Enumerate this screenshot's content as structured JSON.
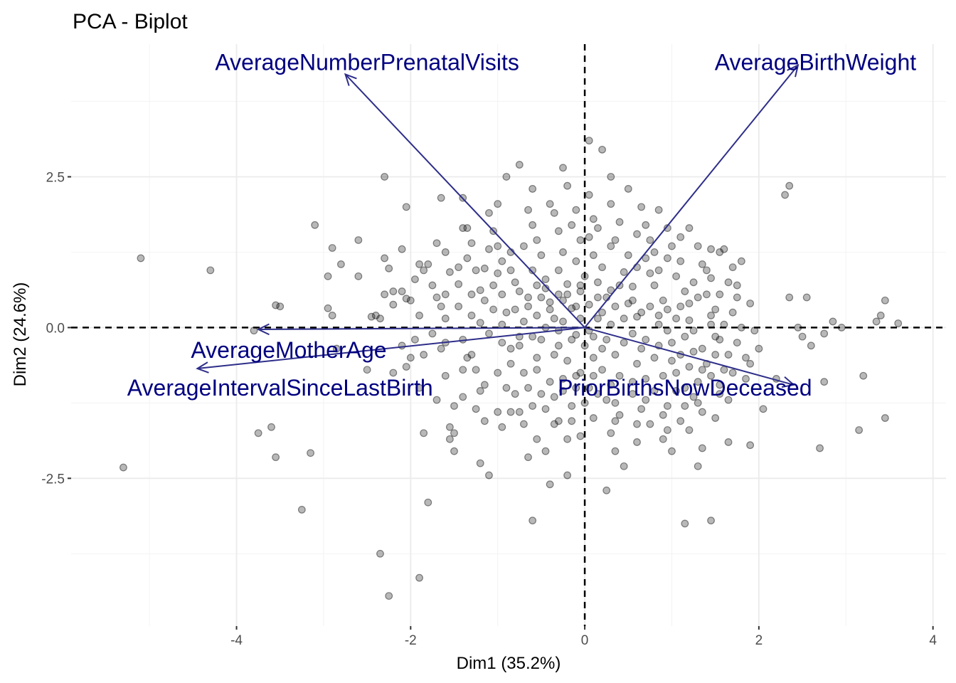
{
  "chart_data": {
    "type": "scatter",
    "title": "PCA - Biplot",
    "xlabel": "Dim1 (35.2%)",
    "ylabel": "Dim2 (24.6%)",
    "xlim": [
      -5.9,
      4.15
    ],
    "ylim": [
      -4.95,
      4.7
    ],
    "x_ticks": [
      -4,
      -2,
      0,
      2,
      4
    ],
    "y_ticks": [
      -2.5,
      0,
      2.5
    ],
    "x_tick_labels": [
      "-4",
      "-2",
      "0",
      "2",
      "4"
    ],
    "y_tick_labels": [
      "-2.5",
      "0.0",
      "2.5"
    ],
    "grid": true,
    "reference_lines": {
      "x": 0,
      "y": 0,
      "style": "dashed"
    },
    "point_color": "#000000",
    "arrow_color": "#2e2e8a",
    "label_color": "#000080",
    "variables": [
      {
        "name": "AverageNumberPrenatalVisits",
        "x": -2.75,
        "y": 4.2,
        "label_x": -2.5,
        "label_y": 4.4
      },
      {
        "name": "AverageBirthWeight",
        "x": 2.45,
        "y": 4.35,
        "label_x": 2.65,
        "label_y": 4.4
      },
      {
        "name": "AverageMotherAge",
        "x": -3.75,
        "y": -0.03,
        "label_x": -3.4,
        "label_y": -0.37
      },
      {
        "name": "AverageIntervalSinceLastBirth",
        "x": -4.45,
        "y": -0.68,
        "label_x": -3.5,
        "label_y": -1.0
      },
      {
        "name": "PriorBirthsNowDeceased",
        "x": 2.4,
        "y": -0.95,
        "label_x": 1.15,
        "label_y": -1.0
      }
    ],
    "points": [
      [
        -5.3,
        -2.32
      ],
      [
        -5.1,
        1.15
      ],
      [
        -4.3,
        0.95
      ],
      [
        -3.55,
        0.37
      ],
      [
        -3.5,
        0.35
      ],
      [
        -3.8,
        -0.05
      ],
      [
        -3.75,
        -1.75
      ],
      [
        -3.6,
        -1.65
      ],
      [
        -3.55,
        -2.15
      ],
      [
        -3.25,
        -3.02
      ],
      [
        -3.15,
        -2.08
      ],
      [
        -3.1,
        1.7
      ],
      [
        -2.9,
        1.32
      ],
      [
        -2.95,
        0.85
      ],
      [
        -2.8,
        1.05
      ],
      [
        -2.9,
        0.2
      ],
      [
        -2.95,
        0.32
      ],
      [
        -2.6,
        0.85
      ],
      [
        -2.5,
        -0.7
      ],
      [
        -2.4,
        0.2
      ],
      [
        -2.35,
        0.15
      ],
      [
        -2.3,
        2.5
      ],
      [
        -2.3,
        1.15
      ],
      [
        -2.25,
        0.98
      ],
      [
        -2.2,
        0.6
      ],
      [
        -2.2,
        0.38
      ],
      [
        -2.1,
        0.6
      ],
      [
        -2.05,
        0.48
      ],
      [
        -2.1,
        -0.3
      ],
      [
        -2.2,
        -0.75
      ],
      [
        -2.0,
        -0.5
      ],
      [
        -1.9,
        1.05
      ],
      [
        -1.8,
        1.05
      ],
      [
        -1.85,
        0.95
      ],
      [
        -1.9,
        -1.0
      ],
      [
        -1.85,
        -1.75
      ],
      [
        -1.8,
        -2.9
      ],
      [
        -1.9,
        -4.15
      ],
      [
        -2.35,
        -3.75
      ],
      [
        -2.25,
        -4.45
      ],
      [
        -1.7,
        1.4
      ],
      [
        -1.7,
        0.5
      ],
      [
        -1.6,
        1.25
      ],
      [
        -1.55,
        0.92
      ],
      [
        -1.6,
        0.15
      ],
      [
        -1.65,
        -0.35
      ],
      [
        -1.6,
        -0.8
      ],
      [
        -1.55,
        -1.65
      ],
      [
        -1.5,
        -1.75
      ],
      [
        -1.55,
        -1.85
      ],
      [
        -1.45,
        0.35
      ],
      [
        -1.4,
        -0.2
      ],
      [
        -1.35,
        -0.5
      ],
      [
        -1.4,
        -1.15
      ],
      [
        -1.5,
        -2.05
      ],
      [
        -1.4,
        2.15
      ],
      [
        -1.4,
        1.65
      ],
      [
        -1.35,
        1.65
      ],
      [
        -1.3,
        1.4
      ],
      [
        -1.25,
        0.95
      ],
      [
        -1.2,
        0.62
      ],
      [
        -1.15,
        0.98
      ],
      [
        -1.3,
        0.2
      ],
      [
        -1.2,
        0.08
      ],
      [
        -1.1,
        -0.1
      ],
      [
        -1.25,
        -0.7
      ],
      [
        -1.2,
        -1.05
      ],
      [
        -1.15,
        -1.55
      ],
      [
        -1.2,
        -2.25
      ],
      [
        -1.1,
        -2.45
      ],
      [
        -1.1,
        1.9
      ],
      [
        -1.05,
        1.6
      ],
      [
        -1.0,
        1.35
      ],
      [
        -1.0,
        0.9
      ],
      [
        -0.95,
        0.55
      ],
      [
        -0.9,
        0.25
      ],
      [
        -0.95,
        -0.25
      ],
      [
        -0.85,
        -0.6
      ],
      [
        -0.9,
        -1.0
      ],
      [
        -1.0,
        -1.4
      ],
      [
        -0.9,
        2.5
      ],
      [
        -0.85,
        1.25
      ],
      [
        -0.8,
        0.75
      ],
      [
        -0.75,
        0.6
      ],
      [
        -0.7,
        0.1
      ],
      [
        -0.75,
        -0.3
      ],
      [
        -0.7,
        -0.75
      ],
      [
        -0.8,
        -1.1
      ],
      [
        -0.75,
        -1.4
      ],
      [
        -0.7,
        -1.6
      ],
      [
        -0.65,
        -2.15
      ],
      [
        -0.75,
        2.7
      ],
      [
        -0.65,
        1.95
      ],
      [
        -0.6,
        1.7
      ],
      [
        -0.55,
        1.45
      ],
      [
        -0.5,
        1.2
      ],
      [
        -0.6,
        0.95
      ],
      [
        -0.45,
        0.8
      ],
      [
        -0.5,
        0.5
      ],
      [
        -0.4,
        0.42
      ],
      [
        -0.55,
        0.2
      ],
      [
        -0.45,
        0.0
      ],
      [
        -0.5,
        -0.2
      ],
      [
        -0.35,
        -0.45
      ],
      [
        -0.55,
        -0.7
      ],
      [
        -0.4,
        -0.9
      ],
      [
        -0.5,
        -1.1
      ],
      [
        -0.45,
        -1.35
      ],
      [
        -0.35,
        -1.6
      ],
      [
        -0.55,
        -1.85
      ],
      [
        -0.45,
        -2.05
      ],
      [
        -0.4,
        2.05
      ],
      [
        -0.3,
        1.6
      ],
      [
        -0.25,
        1.25
      ],
      [
        -0.3,
        0.95
      ],
      [
        -0.2,
        0.72
      ],
      [
        -0.3,
        0.55
      ],
      [
        -0.15,
        0.32
      ],
      [
        -0.25,
        0.1
      ],
      [
        -0.1,
        -0.12
      ],
      [
        -0.3,
        -0.3
      ],
      [
        -0.2,
        -0.55
      ],
      [
        -0.1,
        -0.8
      ],
      [
        -0.25,
        -1.05
      ],
      [
        -0.15,
        -1.3
      ],
      [
        -0.3,
        -1.55
      ],
      [
        -0.2,
        -1.85
      ],
      [
        -0.6,
        -3.2
      ],
      [
        -0.4,
        -2.6
      ],
      [
        -0.25,
        2.65
      ],
      [
        -0.2,
        2.35
      ],
      [
        -0.1,
        1.95
      ],
      [
        -0.15,
        1.7
      ],
      [
        -0.05,
        1.45
      ],
      [
        -0.1,
        1.1
      ],
      [
        0.0,
        0.85
      ],
      [
        -0.05,
        0.6
      ],
      [
        0.05,
        0.38
      ],
      [
        -0.05,
        0.15
      ],
      [
        0.05,
        -0.05
      ],
      [
        0.0,
        -0.3
      ],
      [
        0.1,
        -0.5
      ],
      [
        -0.05,
        -0.75
      ],
      [
        0.05,
        -1.0
      ],
      [
        0.0,
        -1.25
      ],
      [
        0.1,
        -1.5
      ],
      [
        -0.05,
        -1.8
      ],
      [
        0.05,
        2.2
      ],
      [
        0.1,
        1.8
      ],
      [
        0.05,
        1.5
      ],
      [
        0.1,
        1.2
      ],
      [
        0.2,
        1.0
      ],
      [
        0.15,
        0.75
      ],
      [
        0.25,
        0.5
      ],
      [
        0.2,
        0.25
      ],
      [
        0.3,
        0.05
      ],
      [
        0.25,
        -0.2
      ],
      [
        0.35,
        -0.45
      ],
      [
        0.2,
        -0.7
      ],
      [
        0.3,
        -0.95
      ],
      [
        0.25,
        -1.2
      ],
      [
        0.4,
        -1.45
      ],
      [
        0.3,
        -1.75
      ],
      [
        0.35,
        -2.05
      ],
      [
        0.45,
        -2.3
      ],
      [
        0.05,
        3.1
      ],
      [
        0.2,
        2.95
      ],
      [
        0.3,
        2.5
      ],
      [
        0.3,
        2.05
      ],
      [
        0.4,
        1.75
      ],
      [
        0.35,
        1.45
      ],
      [
        0.5,
        1.2
      ],
      [
        0.45,
        0.92
      ],
      [
        0.55,
        0.68
      ],
      [
        0.5,
        0.4
      ],
      [
        0.6,
        0.18
      ],
      [
        0.55,
        -0.1
      ],
      [
        0.65,
        -0.35
      ],
      [
        0.6,
        -0.6
      ],
      [
        0.7,
        -0.85
      ],
      [
        0.55,
        -1.1
      ],
      [
        0.65,
        -1.35
      ],
      [
        0.75,
        -1.6
      ],
      [
        0.6,
        -1.9
      ],
      [
        0.5,
        2.3
      ],
      [
        0.65,
        2.0
      ],
      [
        0.7,
        1.7
      ],
      [
        0.75,
        1.45
      ],
      [
        0.7,
        1.15
      ],
      [
        0.85,
        0.95
      ],
      [
        0.8,
        0.7
      ],
      [
        0.9,
        0.45
      ],
      [
        0.85,
        0.2
      ],
      [
        0.95,
        -0.05
      ],
      [
        0.85,
        -0.3
      ],
      [
        1.0,
        -0.55
      ],
      [
        0.9,
        -0.8
      ],
      [
        1.05,
        -1.05
      ],
      [
        0.95,
        -1.3
      ],
      [
        1.1,
        -1.55
      ],
      [
        0.9,
        -1.85
      ],
      [
        1.0,
        -2.05
      ],
      [
        0.85,
        1.95
      ],
      [
        0.95,
        1.65
      ],
      [
        1.0,
        1.35
      ],
      [
        1.1,
        1.1
      ],
      [
        1.05,
        0.85
      ],
      [
        1.15,
        0.6
      ],
      [
        1.1,
        0.35
      ],
      [
        1.2,
        0.12
      ],
      [
        1.15,
        -0.15
      ],
      [
        1.25,
        -0.4
      ],
      [
        1.2,
        -0.65
      ],
      [
        1.3,
        -0.9
      ],
      [
        1.25,
        -1.15
      ],
      [
        1.35,
        -1.4
      ],
      [
        1.2,
        -1.7
      ],
      [
        1.35,
        -2.0
      ],
      [
        1.3,
        -2.3
      ],
      [
        1.2,
        1.65
      ],
      [
        1.3,
        1.35
      ],
      [
        1.35,
        1.05
      ],
      [
        1.45,
        0.82
      ],
      [
        1.4,
        0.55
      ],
      [
        1.5,
        0.3
      ],
      [
        1.45,
        0.05
      ],
      [
        1.55,
        -0.2
      ],
      [
        1.5,
        -0.45
      ],
      [
        1.6,
        -0.7
      ],
      [
        1.55,
        -0.95
      ],
      [
        1.65,
        -1.2
      ],
      [
        1.5,
        -1.5
      ],
      [
        1.6,
        1.3
      ],
      [
        1.7,
        1.0
      ],
      [
        1.65,
        0.75
      ],
      [
        1.75,
        0.5
      ],
      [
        1.7,
        0.25
      ],
      [
        1.8,
        0.0
      ],
      [
        1.75,
        -0.25
      ],
      [
        1.85,
        -0.5
      ],
      [
        1.7,
        -0.75
      ],
      [
        1.8,
        1.1
      ],
      [
        1.55,
        1.25
      ],
      [
        1.45,
        1.3
      ],
      [
        1.9,
        0.4
      ],
      [
        1.95,
        -0.05
      ],
      [
        2.0,
        -0.35
      ],
      [
        1.9,
        -0.6
      ],
      [
        1.85,
        -0.85
      ],
      [
        1.65,
        -1.9
      ],
      [
        1.9,
        -1.95
      ],
      [
        2.05,
        -1.35
      ],
      [
        2.2,
        -0.85
      ],
      [
        2.3,
        2.2
      ],
      [
        2.35,
        2.35
      ],
      [
        2.35,
        0.5
      ],
      [
        2.55,
        0.5
      ],
      [
        2.45,
        0.0
      ],
      [
        2.5,
        -0.15
      ],
      [
        2.6,
        -0.3
      ],
      [
        2.75,
        -0.1
      ],
      [
        2.85,
        0.1
      ],
      [
        2.95,
        0.0
      ],
      [
        2.7,
        -2.0
      ],
      [
        2.75,
        -0.9
      ],
      [
        3.15,
        -1.7
      ],
      [
        3.2,
        -0.8
      ],
      [
        3.35,
        0.1
      ],
      [
        3.4,
        0.2
      ],
      [
        3.45,
        0.45
      ],
      [
        3.45,
        -1.5
      ],
      [
        3.6,
        0.07
      ],
      [
        1.15,
        -3.25
      ],
      [
        1.45,
        -3.2
      ],
      [
        0.25,
        -2.7
      ],
      [
        -0.2,
        -2.45
      ],
      [
        -2.3,
        0.55
      ],
      [
        -2.1,
        1.3
      ],
      [
        -1.95,
        0.8
      ],
      [
        -1.75,
        0.7
      ],
      [
        -1.65,
        0.35
      ],
      [
        -1.45,
        0.72
      ],
      [
        -1.3,
        -0.45
      ],
      [
        -1.05,
        0.3
      ],
      [
        -0.95,
        0.05
      ],
      [
        -0.85,
        -0.35
      ],
      [
        -0.65,
        0.35
      ],
      [
        -0.6,
        -0.15
      ],
      [
        -0.55,
        0.7
      ],
      [
        -0.45,
        0.65
      ],
      [
        -0.35,
        0.15
      ],
      [
        -0.3,
        -0.05
      ],
      [
        -0.2,
        0.55
      ],
      [
        -0.15,
        -0.2
      ],
      [
        -0.1,
        0.35
      ],
      [
        0.15,
        0.15
      ],
      [
        0.2,
        -0.35
      ],
      [
        0.3,
        0.62
      ],
      [
        0.45,
        0.15
      ],
      [
        0.45,
        -0.25
      ],
      [
        0.55,
        0.45
      ],
      [
        0.65,
        0.25
      ],
      [
        0.7,
        -0.2
      ],
      [
        0.75,
        0.35
      ],
      [
        0.8,
        -0.5
      ],
      [
        0.85,
        0.05
      ],
      [
        0.95,
        0.3
      ],
      [
        1.0,
        -0.25
      ],
      [
        1.05,
        0.15
      ],
      [
        1.1,
        -0.45
      ],
      [
        1.2,
        0.4
      ],
      [
        1.25,
        -0.05
      ],
      [
        1.3,
        0.5
      ],
      [
        1.35,
        -0.35
      ],
      [
        1.4,
        -0.6
      ],
      [
        1.45,
        0.2
      ],
      [
        1.5,
        -0.15
      ],
      [
        1.55,
        0.55
      ],
      [
        1.6,
        0.05
      ],
      [
        1.65,
        -0.45
      ],
      [
        1.75,
        0.7
      ],
      [
        1.4,
        0.95
      ],
      [
        1.25,
        0.75
      ],
      [
        0.95,
        1.15
      ],
      [
        0.75,
        0.9
      ],
      [
        0.6,
        1.0
      ],
      [
        0.4,
        0.7
      ],
      [
        0.35,
        0.35
      ],
      [
        0.15,
        0.5
      ],
      [
        0.1,
        -0.15
      ],
      [
        -0.05,
        0.7
      ],
      [
        -0.25,
        0.45
      ],
      [
        -0.4,
        0.3
      ],
      [
        -0.65,
        0.5
      ],
      [
        -0.8,
        0.3
      ],
      [
        -0.85,
        0.95
      ],
      [
        -1.05,
        0.7
      ],
      [
        -1.15,
        0.45
      ],
      [
        -1.3,
        0.55
      ],
      [
        -1.45,
        1.0
      ],
      [
        -1.6,
        0.55
      ],
      [
        -1.75,
        -0.1
      ],
      [
        -1.85,
        -0.45
      ],
      [
        -1.95,
        -0.2
      ],
      [
        -2.05,
        -0.65
      ],
      [
        -1.7,
        -1.2
      ],
      [
        -1.5,
        -1.3
      ],
      [
        -1.25,
        -1.35
      ],
      [
        -0.95,
        -1.65
      ],
      [
        -0.85,
        -1.4
      ],
      [
        -0.65,
        -1.0
      ],
      [
        -0.6,
        -1.3
      ],
      [
        -0.35,
        -1.15
      ],
      [
        -0.25,
        -0.85
      ],
      [
        -0.15,
        -1.55
      ],
      [
        0.1,
        -0.8
      ],
      [
        0.15,
        -1.1
      ],
      [
        0.35,
        -1.25
      ],
      [
        0.4,
        -0.8
      ],
      [
        0.55,
        -0.9
      ],
      [
        0.7,
        -1.2
      ],
      [
        0.8,
        -1.05
      ],
      [
        0.9,
        -1.45
      ],
      [
        1.05,
        -0.75
      ],
      [
        1.15,
        -1.0
      ],
      [
        1.3,
        -1.25
      ],
      [
        1.45,
        -0.8
      ],
      [
        1.55,
        -1.1
      ],
      [
        1.35,
        -0.7
      ],
      [
        1.15,
        -1.3
      ],
      [
        0.95,
        -1.7
      ],
      [
        0.6,
        -1.6
      ],
      [
        0.35,
        -1.55
      ],
      [
        -0.1,
        -1.0
      ],
      [
        -0.55,
        -0.5
      ],
      [
        -0.75,
        -0.15
      ],
      [
        -1.0,
        -0.75
      ],
      [
        -1.15,
        -0.95
      ],
      [
        -1.4,
        -0.7
      ],
      [
        -1.6,
        -0.25
      ],
      [
        -1.9,
        0.2
      ],
      [
        -2.0,
        0.45
      ],
      [
        -2.45,
        0.18
      ],
      [
        -2.85,
        -0.35
      ],
      [
        0.6,
        1.55
      ],
      [
        0.8,
        1.25
      ],
      [
        1.1,
        1.5
      ],
      [
        0.3,
        1.35
      ],
      [
        0.15,
        1.65
      ],
      [
        -0.35,
        1.9
      ],
      [
        -0.7,
        1.35
      ],
      [
        -0.95,
        1.1
      ],
      [
        -1.1,
        1.3
      ],
      [
        -1.35,
        1.15
      ],
      [
        -0.6,
        2.3
      ],
      [
        -1.0,
        2.05
      ],
      [
        -1.65,
        2.15
      ],
      [
        -2.05,
        2.0
      ],
      [
        -2.6,
        1.45
      ]
    ]
  }
}
